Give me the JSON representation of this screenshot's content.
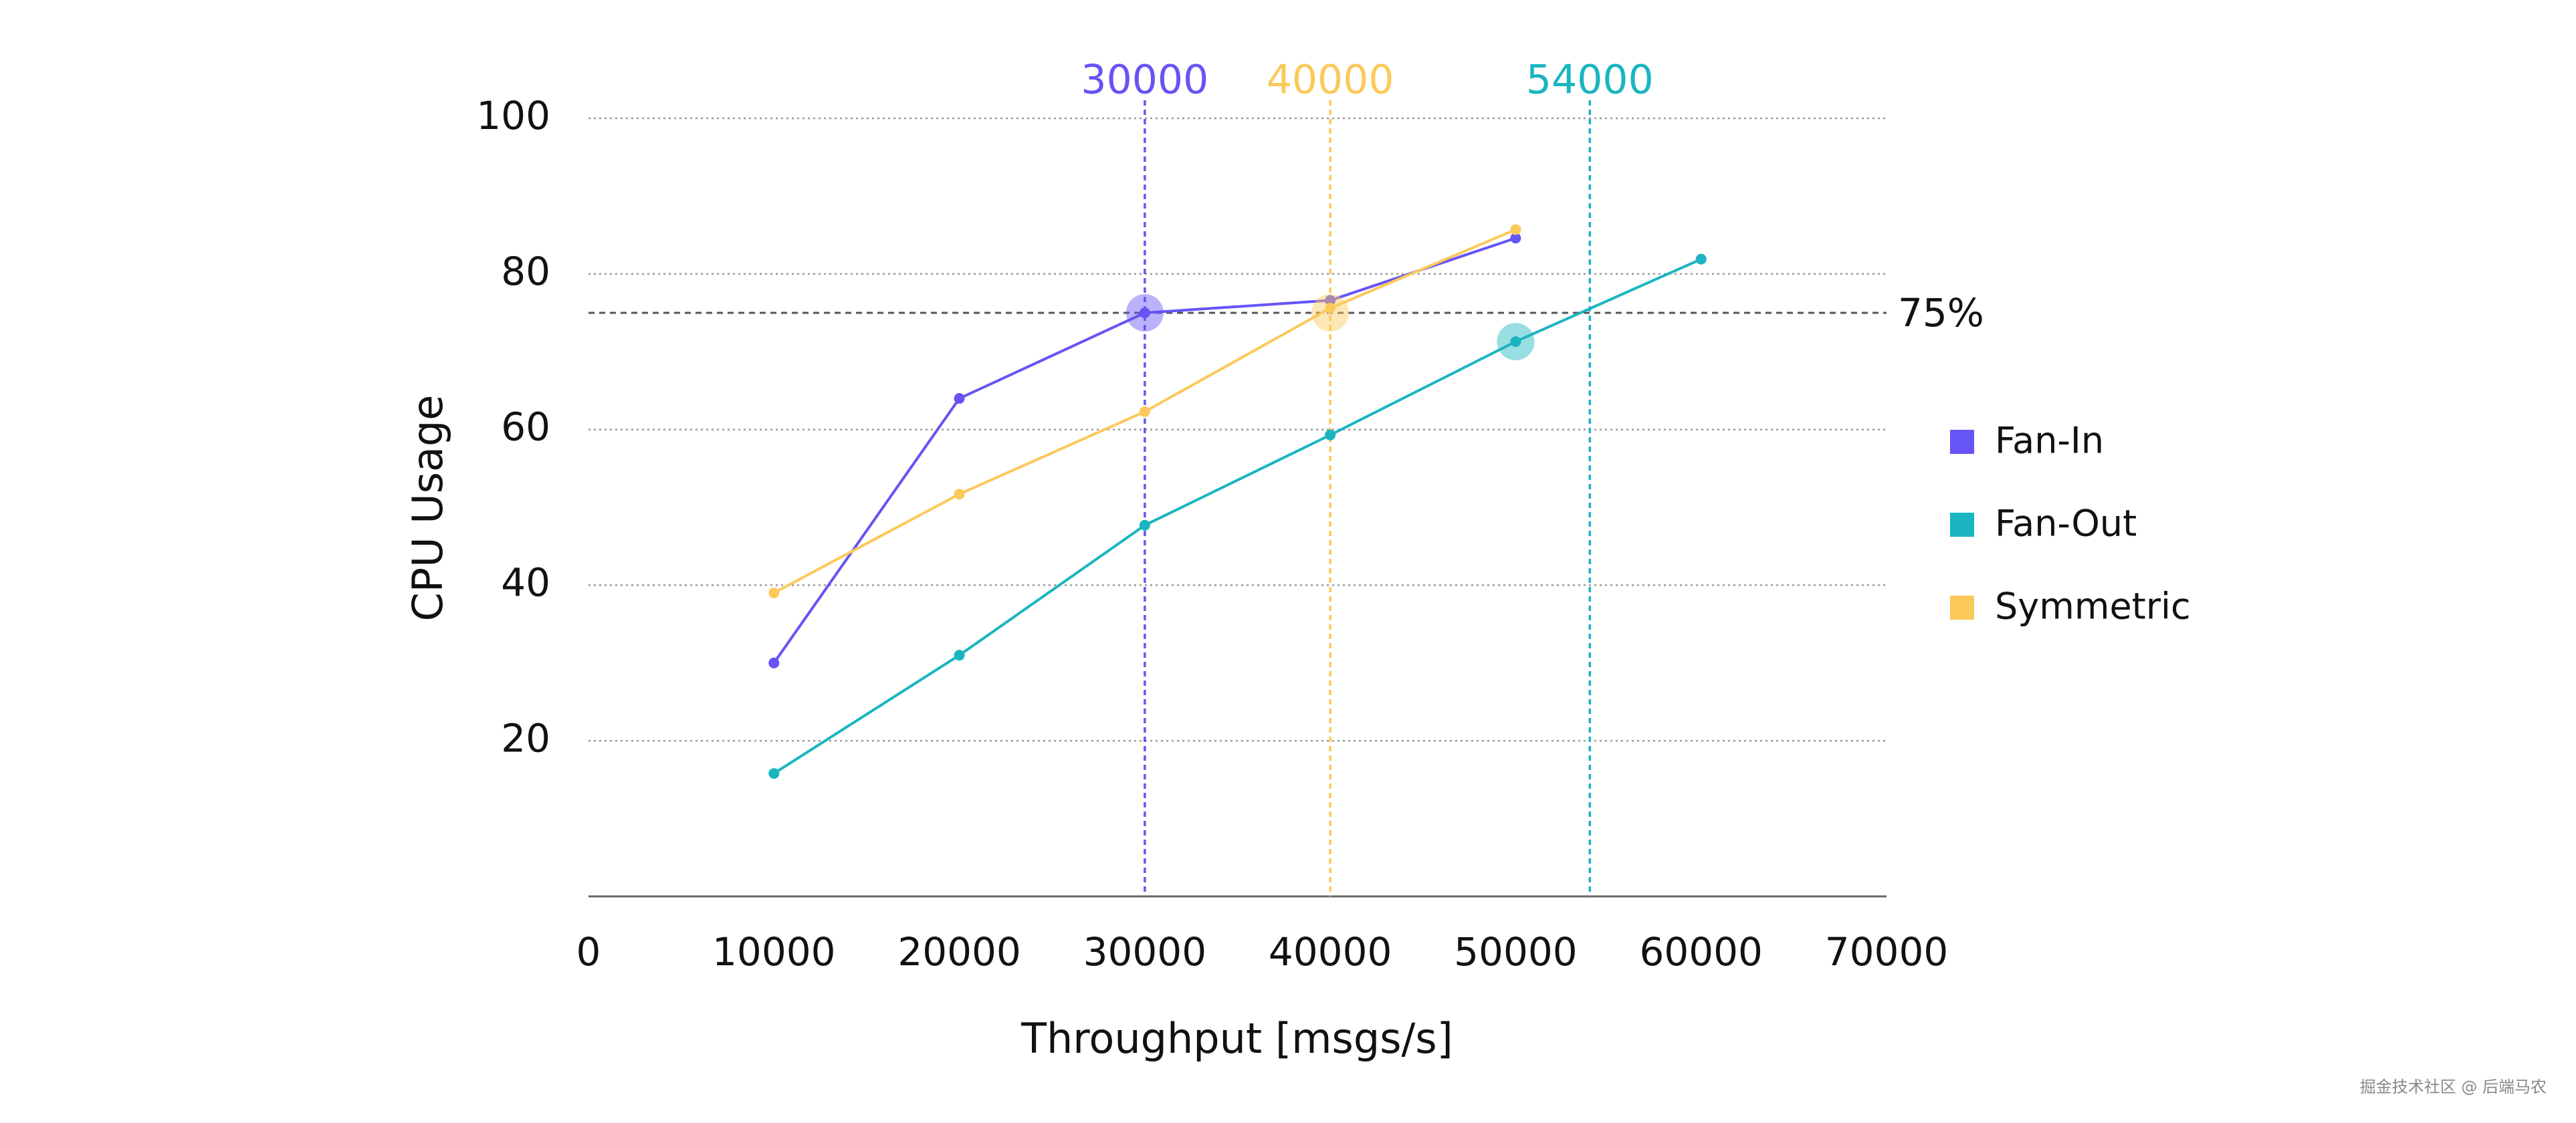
{
  "chart_data": {
    "type": "line",
    "x_label": "Throughput [msgs/s]",
    "y_label": "CPU Usage",
    "x": [
      10000,
      20000,
      30000,
      40000,
      50000,
      60000
    ],
    "series": [
      {
        "name": "Fan-In",
        "color": "#6654f5",
        "values": [
          30,
          64,
          75,
          76.6,
          84.6,
          null
        ]
      },
      {
        "name": "Fan-Out",
        "color": "#1ab5c0",
        "values": [
          15.8,
          31,
          47.7,
          59.3,
          71.3,
          81.9
        ]
      },
      {
        "name": "Symmetric",
        "color": "#fbc95a",
        "values": [
          39,
          51.7,
          62.3,
          75.6,
          85.7,
          null
        ]
      }
    ],
    "xlim": [
      0,
      70000
    ],
    "xticks": [
      0,
      10000,
      20000,
      30000,
      40000,
      50000,
      60000,
      70000
    ],
    "ylim": [
      0,
      100
    ],
    "yticks": [
      20,
      40,
      60,
      80,
      100
    ],
    "grid": true,
    "legend": "right",
    "vlines": [
      {
        "x": 30000,
        "color": "#6654f5"
      },
      {
        "x": 40000,
        "color": "#fbc95a"
      },
      {
        "x": 54000,
        "color": "#1ab5c0"
      }
    ],
    "hline": {
      "y": 75,
      "label": "75%"
    },
    "highlights": [
      {
        "x": 30000,
        "y": 75,
        "color": "#6654f5"
      },
      {
        "x": 40000,
        "y": 75,
        "color": "#fbc95a"
      },
      {
        "x": 50000,
        "y": 71.3,
        "color": "#1ab5c0"
      }
    ]
  },
  "watermark": "掘金技术社区 @ 后端马农"
}
